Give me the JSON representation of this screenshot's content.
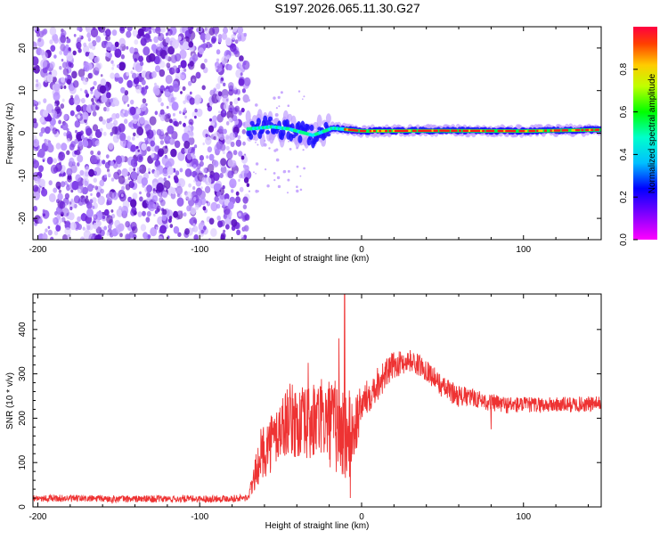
{
  "title": "S197.2026.065.11.30.G27",
  "chart_data": [
    {
      "type": "heatmap",
      "xlabel": "Height of straight line (km)",
      "ylabel": "Frequency (Hz)",
      "xlim": [
        -203,
        148
      ],
      "ylim": [
        -25,
        25
      ],
      "xticks": [
        -200,
        -100,
        0,
        100
      ],
      "yticks": [
        -20,
        -10,
        0,
        10,
        20
      ],
      "noise_region_x": [
        -203,
        -70
      ],
      "signal_band": {
        "x_start": -70,
        "x_end": 148,
        "center_freq": [
          {
            "x": -70,
            "f": 1.0
          },
          {
            "x": -55,
            "f": 1.5
          },
          {
            "x": -45,
            "f": 1.0
          },
          {
            "x": -30,
            "f": -0.5
          },
          {
            "x": -18,
            "f": 1.2
          },
          {
            "x": 0,
            "f": 0.5
          },
          {
            "x": 50,
            "f": 0.6
          },
          {
            "x": 100,
            "f": 0.5
          },
          {
            "x": 148,
            "f": 0.8
          }
        ],
        "max_amplitude": 0.97
      },
      "colorbar": {
        "label": "Normalized spectral amplitude",
        "range": [
          0.0,
          1.0
        ],
        "ticks": [
          "0.0",
          "0.2",
          "0.4",
          "0.6",
          "0.8"
        ],
        "tick_values": [
          0.0,
          0.2,
          0.4,
          0.6,
          0.8
        ]
      }
    },
    {
      "type": "line",
      "xlabel": "Height of straight line (km)",
      "ylabel": "SNR (10 * v/v)",
      "xlim": [
        -203,
        148
      ],
      "ylim": [
        0,
        480
      ],
      "xticks": [
        -200,
        -100,
        0,
        100
      ],
      "yticks": [
        0,
        100,
        200,
        300,
        400
      ],
      "series": [
        {
          "name": "SNR",
          "color": "#ee3333",
          "x": [
            -203,
            -150,
            -100,
            -70,
            -62,
            -55,
            -45,
            -35,
            -25,
            -15,
            -10,
            -5,
            0,
            10,
            20,
            30,
            40,
            50,
            60,
            70,
            80,
            90,
            100,
            120,
            148
          ],
          "base": [
            20,
            18,
            18,
            20,
            120,
            150,
            200,
            180,
            200,
            180,
            150,
            170,
            230,
            280,
            320,
            330,
            310,
            270,
            250,
            245,
            235,
            230,
            230,
            230,
            232
          ],
          "spread": [
            8,
            8,
            8,
            8,
            60,
            70,
            80,
            90,
            90,
            110,
            120,
            90,
            40,
            40,
            30,
            25,
            25,
            25,
            25,
            20,
            20,
            20,
            18,
            18,
            18
          ]
        }
      ],
      "spikes": [
        {
          "x": -10.5,
          "y": 480
        },
        {
          "x": -14,
          "y": 380
        },
        {
          "x": -33,
          "y": 325
        },
        {
          "x": -7,
          "y": 20
        },
        {
          "x": 80,
          "y": 175
        }
      ]
    }
  ],
  "colors": {
    "signal_line": "#ee3333",
    "noise_dots": "#8a2be2"
  }
}
